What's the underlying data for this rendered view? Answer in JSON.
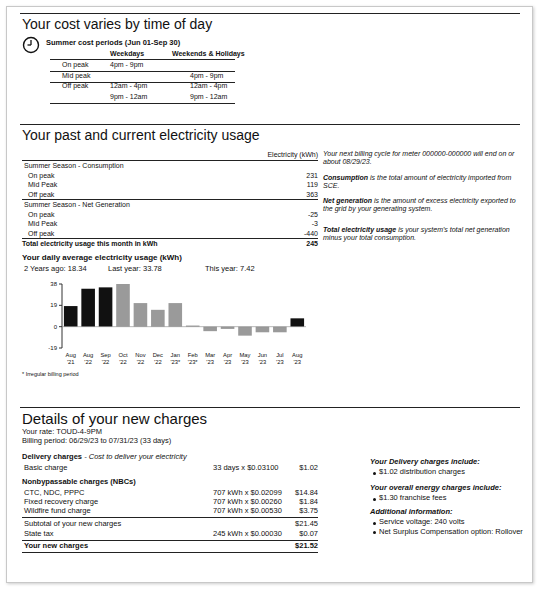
{
  "cost_periods": {
    "title": "Your cost varies by time of day",
    "subtitle": "Summer cost periods (Jun 01-Sep 30)",
    "columns": [
      "Weekdays",
      "Weekends & Holidays"
    ],
    "rows": [
      [
        "On peak",
        "4pm - 9pm",
        null
      ],
      [
        "Mid peak",
        null,
        "4pm - 9pm"
      ],
      [
        "Off peak",
        "12am - 4pm",
        "12am - 4pm"
      ],
      [
        null,
        "9pm - 12am",
        "9pm - 12am"
      ]
    ]
  },
  "usage": {
    "title": "Your past and current electricity usage",
    "header": "Electricity (kWh)",
    "sections": [
      {
        "title": "Summer Season - Consumption",
        "rows": [
          [
            "On peak",
            "231"
          ],
          [
            "Mid Peak",
            "119"
          ],
          [
            "Off peak",
            "363"
          ]
        ]
      },
      {
        "title": "Summer Season - Net Generation",
        "rows": [
          [
            "On peak",
            "-25"
          ],
          [
            "Mid Peak",
            "-3"
          ],
          [
            "Off peak",
            "-440"
          ]
        ]
      }
    ],
    "total": [
      "Total electricity usage this month in kWh",
      "245"
    ],
    "notes": [
      {
        "term": null,
        "text": "Your next billing cycle for meter 000000-000000 will end on or about 08/29/23."
      },
      {
        "term": "Consumption",
        "text": " is the total amount of electricity imported from SCE."
      },
      {
        "term": "Net generation",
        "text": " is the amount of excess electricity exported to the grid by your generating system."
      },
      {
        "term": "Total electricity usage",
        "text": " is your system's total net generation minus your total consumption."
      }
    ],
    "summary": [
      "2 Years ago: 18.34",
      "Last year: 33.78",
      "This year: 7.42"
    ],
    "footnote": "* Irregular billing period"
  },
  "chart_data": {
    "type": "bar",
    "title": "Your daily average electricity usage (kWh)",
    "categories": [
      "Aug '21",
      "Aug '22",
      "Sep '22",
      "Oct '22",
      "Nov '22",
      "Dec '22",
      "Jan '23*",
      "Feb '23*",
      "Mar '23",
      "Apr '23",
      "May '23",
      "Jun '23",
      "Jul '23",
      "Aug '23"
    ],
    "values": [
      18.34,
      33.78,
      35,
      38,
      21,
      15,
      21,
      1,
      -4,
      -2,
      -8,
      -5,
      -5,
      7.42
    ],
    "colors": [
      "#111111",
      "#111111",
      "#111111",
      "#9a9a9a",
      "#9a9a9a",
      "#9a9a9a",
      "#9a9a9a",
      "#9a9a9a",
      "#9a9a9a",
      "#9a9a9a",
      "#9a9a9a",
      "#9a9a9a",
      "#9a9a9a",
      "#111111"
    ],
    "ylim": [
      -19,
      38
    ],
    "yticks": [
      -19,
      0,
      19,
      38
    ],
    "grid": false
  },
  "charges": {
    "title": "Details of your new charges",
    "rate": "Your rate: TOUD-4-9PM",
    "billing_period": "Billing period: 06/29/23 to 07/31/23 (33 days)",
    "delivery": {
      "title": "Delivery charges",
      "subtitle": " - Cost to deliver your electricity",
      "rows": [
        [
          "Basic charge",
          "33 days x $0.03100",
          "$1.02"
        ]
      ]
    },
    "nbc": {
      "title": "Nonbypassable charges (NBCs)",
      "rows": [
        [
          "CTC, NDC, PPPC",
          "707 kWh x $0.02099",
          "$14.84"
        ],
        [
          "Fixed recovery charge",
          "707 kWh x $0.00260",
          "$1.84"
        ],
        [
          "Wildfire fund charge",
          "707 kWh x $0.00530",
          "$3.75"
        ]
      ]
    },
    "subtotal": [
      "Subtotal of your new charges",
      "$21.45"
    ],
    "tax": [
      "State tax",
      "245 kWh x $0.00030",
      "$0.07"
    ],
    "total": [
      "Your new charges",
      "$21.52"
    ],
    "sidebar": [
      {
        "heading": "Your Delivery charges include:",
        "items": [
          "$1.02 distribution charges"
        ]
      },
      {
        "heading": "Your overall energy charges include:",
        "items": [
          "$1.30 franchise fees"
        ]
      },
      {
        "heading": "Additional information:",
        "items": [
          "Service voltage: 240 volts",
          "Net Surplus Compensation option: Rollover"
        ]
      }
    ]
  }
}
